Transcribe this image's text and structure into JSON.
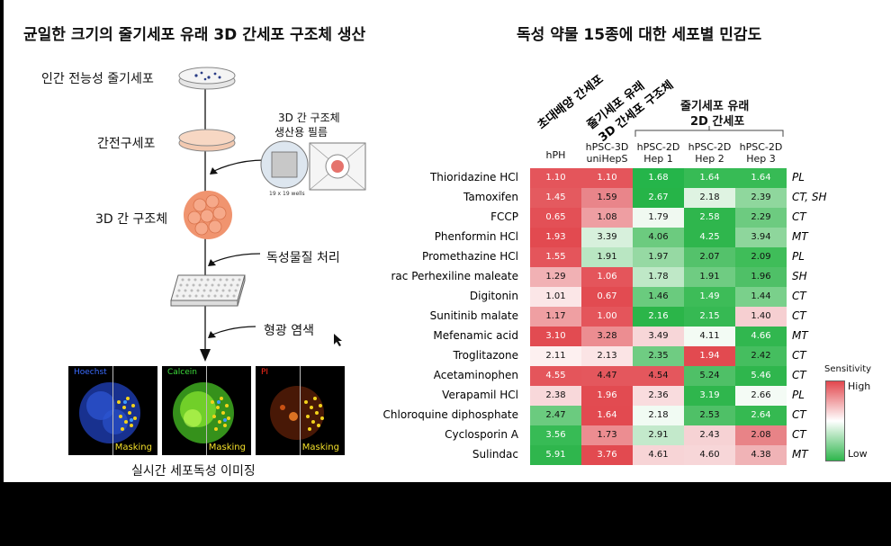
{
  "left": {
    "title": "균일한 크기의 줄기세포 유래 3D 간세포 구조체 생산",
    "steps": {
      "s1": "인간 전능성 줄기세포",
      "s2": "간전구세포",
      "s3": "3D 간 구조체",
      "film_label_1": "3D 간 구조체",
      "film_label_2": "생산용 필름",
      "wells": "19 x 19 wells",
      "s4": "독성물질 처리",
      "s5": "형광 염색",
      "s6": "실시간 세포독성 이미징"
    },
    "stains": [
      {
        "name": "Hoechst",
        "color": "#3b6cff",
        "mask": "Masking"
      },
      {
        "name": "Calcein",
        "color": "#3ddc3a",
        "mask": "Masking"
      },
      {
        "name": "PI",
        "color": "#ff2a1a",
        "mask": "Masking"
      }
    ]
  },
  "right": {
    "title": "독성 약물 15종에 대한 세포별 민감도",
    "group_labels": {
      "g1": "초대배양 간세포",
      "g2a": "줄기세포 유래",
      "g2b": "3D 간세포 구조체",
      "g3a": "줄기세포 유래",
      "g3b": "2D 간세포"
    },
    "columns": [
      {
        "l1": "hPH",
        "l2": ""
      },
      {
        "l1": "hPSC-3D",
        "l2": "uniHepS"
      },
      {
        "l1": "hPSC-2D",
        "l2": "Hep 1"
      },
      {
        "l1": "hPSC-2D",
        "l2": "Hep 2"
      },
      {
        "l1": "hPSC-2D",
        "l2": "Hep 3"
      }
    ],
    "rows": [
      {
        "drug": "Thioridazine HCl",
        "mech": "PL",
        "vals": [
          "1.10",
          "1.10",
          "1.68",
          "1.64",
          "1.64"
        ],
        "colors": [
          "#e4555b",
          "#e4555b",
          "#25b54a",
          "#37bb55",
          "#37bb55"
        ]
      },
      {
        "drug": "Tamoxifen",
        "mech": "CT, SH",
        "vals": [
          "1.45",
          "1.59",
          "2.67",
          "2.18",
          "2.39"
        ],
        "colors": [
          "#e45a5f",
          "#e9858a",
          "#26b448",
          "#dff3e2",
          "#8fd79d"
        ]
      },
      {
        "drug": "FCCP",
        "mech": "CT",
        "vals": [
          "0.65",
          "1.08",
          "1.79",
          "2.58",
          "2.29"
        ],
        "colors": [
          "#e35056",
          "#ee9ea2",
          "#f0f9f1",
          "#2fb64d",
          "#6dcb80"
        ]
      },
      {
        "drug": "Phenformin HCl",
        "mech": "MT",
        "vals": [
          "1.93",
          "3.39",
          "4.06",
          "4.25",
          "3.94"
        ],
        "colors": [
          "#e24a50",
          "#d7f0dc",
          "#6ccb7f",
          "#2fb64d",
          "#8ed69c"
        ]
      },
      {
        "drug": "Promethazine HCl",
        "mech": "PL",
        "vals": [
          "1.55",
          "1.91",
          "1.97",
          "2.07",
          "2.09"
        ],
        "colors": [
          "#e4555b",
          "#b9e6c2",
          "#96d9a3",
          "#54c26b",
          "#3fbd59"
        ]
      },
      {
        "drug": "rac Perhexiline maleate",
        "mech": "SH",
        "vals": [
          "1.29",
          "1.06",
          "1.78",
          "1.91",
          "1.96"
        ],
        "colors": [
          "#f1b1b4",
          "#e4555b",
          "#bfe8c7",
          "#6fcc82",
          "#4fc067"
        ]
      },
      {
        "drug": "Digitonin",
        "mech": "CT",
        "vals": [
          "1.01",
          "0.67",
          "1.46",
          "1.49",
          "1.44"
        ],
        "colors": [
          "#fbe6e7",
          "#e24b51",
          "#6acb7e",
          "#3dbc58",
          "#7ad08b"
        ]
      },
      {
        "drug": "Sunitinib malate",
        "mech": "CT",
        "vals": [
          "1.17",
          "1.00",
          "2.16",
          "2.15",
          "1.40"
        ],
        "colors": [
          "#ef9fa2",
          "#e4555b",
          "#2bb549",
          "#36b953",
          "#f6cfd1"
        ]
      },
      {
        "drug": "Mefenamic acid",
        "mech": "MT",
        "vals": [
          "3.10",
          "3.28",
          "3.49",
          "4.11",
          "4.66"
        ],
        "colors": [
          "#e24b51",
          "#ec8d91",
          "#f7d6d8",
          "#f3fbf4",
          "#31b74f"
        ]
      },
      {
        "drug": "Troglitazone",
        "mech": "CT",
        "vals": [
          "2.11",
          "2.13",
          "2.35",
          "1.94",
          "2.42"
        ],
        "colors": [
          "#fdf0f0",
          "#fbe4e5",
          "#6fcc82",
          "#e24a50",
          "#45be5f"
        ]
      },
      {
        "drug": "Acetaminophen",
        "mech": "CT",
        "vals": [
          "4.55",
          "4.47",
          "4.54",
          "5.24",
          "5.46"
        ],
        "colors": [
          "#e4555b",
          "#e4575d",
          "#e4575d",
          "#4fc067",
          "#2fb64d"
        ]
      },
      {
        "drug": "Verapamil HCl",
        "mech": "PL",
        "vals": [
          "2.38",
          "1.96",
          "2.36",
          "3.19",
          "2.66"
        ],
        "colors": [
          "#f8d8da",
          "#e24b51",
          "#f9dcde",
          "#2fb64d",
          "#f4fbf5"
        ]
      },
      {
        "drug": "Chloroquine diphosphate",
        "mech": "CT",
        "vals": [
          "2.47",
          "1.64",
          "2.18",
          "2.53",
          "2.64"
        ],
        "colors": [
          "#6bcb7f",
          "#e24a50",
          "#f1fbf3",
          "#4fc067",
          "#35b951"
        ]
      },
      {
        "drug": "Cyclosporin A",
        "mech": "CT",
        "vals": [
          "3.56",
          "1.73",
          "2.91",
          "2.43",
          "2.08"
        ],
        "colors": [
          "#37bb55",
          "#ec8d91",
          "#c3e9cb",
          "#f6d2d4",
          "#e88387"
        ]
      },
      {
        "drug": "Sulindac",
        "mech": "MT",
        "vals": [
          "5.91",
          "3.76",
          "4.61",
          "4.60",
          "4.38"
        ],
        "colors": [
          "#2fb64d",
          "#e24a50",
          "#f7d4d6",
          "#f7d6d8",
          "#f0b3b6"
        ]
      }
    ],
    "legend": {
      "title": "Sensitivity",
      "high": "High",
      "low": "Low",
      "high_color": "#e2474e",
      "low_color": "#2fb64d"
    }
  }
}
